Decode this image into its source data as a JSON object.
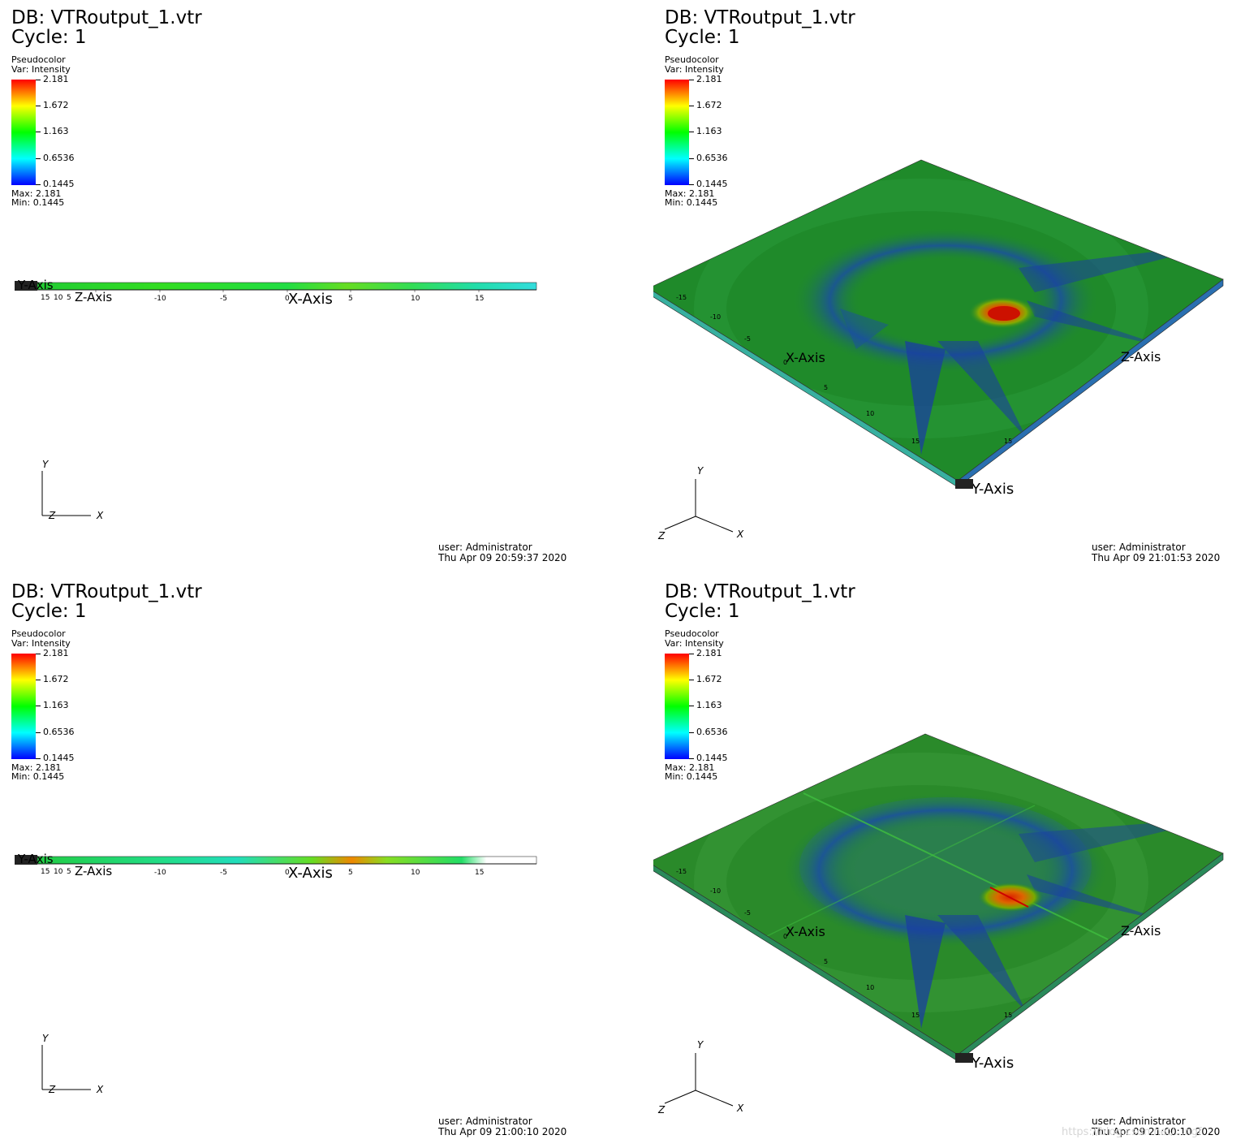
{
  "panels": [
    {
      "db": "DB: VTRoutput_1.vtr",
      "cycle": "Cycle: 1",
      "plot": "Pseudocolor",
      "var": "Var: Intensity",
      "ticks": [
        "2.181",
        "1.672",
        "1.163",
        "0.6536",
        "0.1445"
      ],
      "max": "Max:  2.181",
      "min": "Min:  0.1445",
      "axes": {
        "x": "X-Axis",
        "y": "Y-Axis",
        "z": "Z-Axis"
      },
      "triad": {
        "x": "X",
        "y": "Y",
        "z": "Z"
      },
      "scale_ticks": [
        "15",
        "10",
        "5",
        "-10",
        "-5",
        "0",
        "5",
        "10",
        "15"
      ],
      "user": "user: Administrator",
      "date": "Thu Apr 09 20:59:37 2020"
    },
    {
      "db": "DB: VTRoutput_1.vtr",
      "cycle": "Cycle: 1",
      "plot": "Pseudocolor",
      "var": "Var: Intensity",
      "ticks": [
        "2.181",
        "1.672",
        "1.163",
        "0.6536",
        "0.1445"
      ],
      "max": "Max:  2.181",
      "min": "Min:  0.1445",
      "axes": {
        "x": "X-Axis",
        "y": "Y-Axis",
        "z": "Z-Axis"
      },
      "triad": {
        "x": "X",
        "y": "Y",
        "z": "Z"
      },
      "scale_ticks": [
        "-15",
        "-10",
        "-5",
        "0",
        "5",
        "10",
        "15",
        "15"
      ],
      "user": "user: Administrator",
      "date": "Thu Apr 09 21:01:53 2020"
    },
    {
      "db": "DB: VTRoutput_1.vtr",
      "cycle": "Cycle: 1",
      "plot": "Pseudocolor",
      "var": "Var: Intensity",
      "ticks": [
        "2.181",
        "1.672",
        "1.163",
        "0.6536",
        "0.1445"
      ],
      "max": "Max:  2.181",
      "min": "Min:  0.1445",
      "axes": {
        "x": "X-Axis",
        "y": "Y-Axis",
        "z": "Z-Axis"
      },
      "triad": {
        "x": "X",
        "y": "Y",
        "z": "Z"
      },
      "scale_ticks": [
        "15",
        "10",
        "5",
        "-10",
        "-5",
        "0",
        "5",
        "10",
        "15"
      ],
      "user": "user: Administrator",
      "date": "Thu Apr 09 21:00:10 2020"
    },
    {
      "db": "DB: VTRoutput_1.vtr",
      "cycle": "Cycle: 1",
      "plot": "Pseudocolor",
      "var": "Var: Intensity",
      "ticks": [
        "2.181",
        "1.672",
        "1.163",
        "0.6536",
        "0.1445"
      ],
      "max": "Max:  2.181",
      "min": "Min:  0.1445",
      "axes": {
        "x": "X-Axis",
        "y": "Y-Axis",
        "z": "Z-Axis"
      },
      "triad": {
        "x": "X",
        "y": "Y",
        "z": "Z"
      },
      "scale_ticks": [
        "-15",
        "-10",
        "-5",
        "0",
        "5",
        "10",
        "15",
        "15"
      ],
      "user": "user: Administrator",
      "date": "Thu Apr 09 21:00:10 2020"
    }
  ],
  "watermark": "https://blog.csdn.net/...ngf",
  "colors": {
    "high": "#ff0000",
    "mid": "#00ff00",
    "low": "#0000ff",
    "field": "#1f8a2a"
  }
}
